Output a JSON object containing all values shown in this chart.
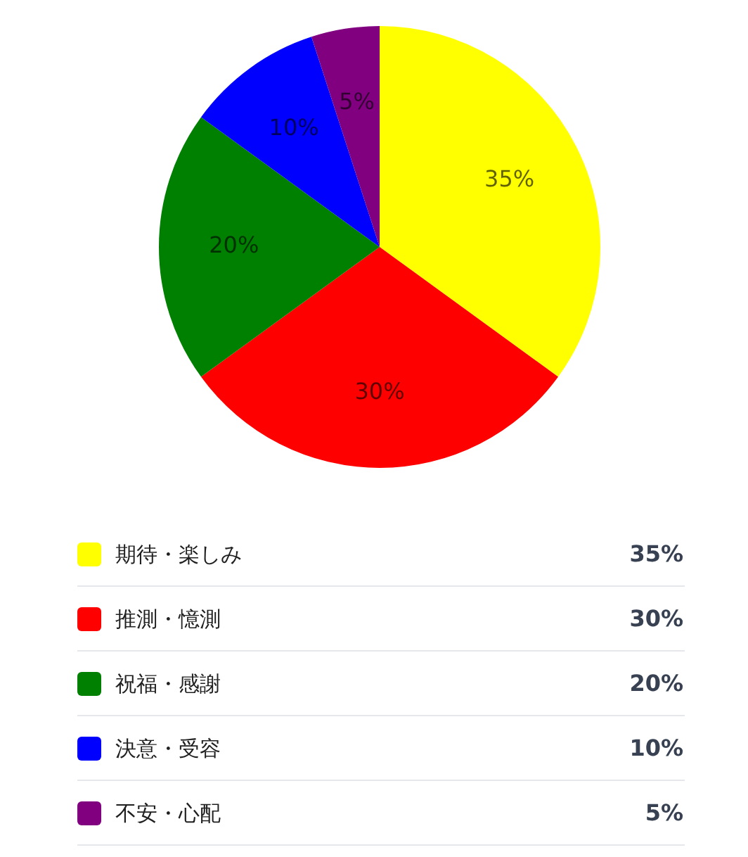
{
  "chart_data": {
    "type": "pie",
    "categories": [
      "期待・楽しみ",
      "推測・憶測",
      "祝福・感謝",
      "決意・受容",
      "不安・心配"
    ],
    "values": [
      35,
      30,
      20,
      10,
      5
    ],
    "colors": [
      "#ffff00",
      "#ff0000",
      "#008000",
      "#0000ff",
      "#800080"
    ],
    "value_labels": [
      "35%",
      "30%",
      "20%",
      "10%",
      "5%"
    ],
    "legend": "bottom"
  }
}
